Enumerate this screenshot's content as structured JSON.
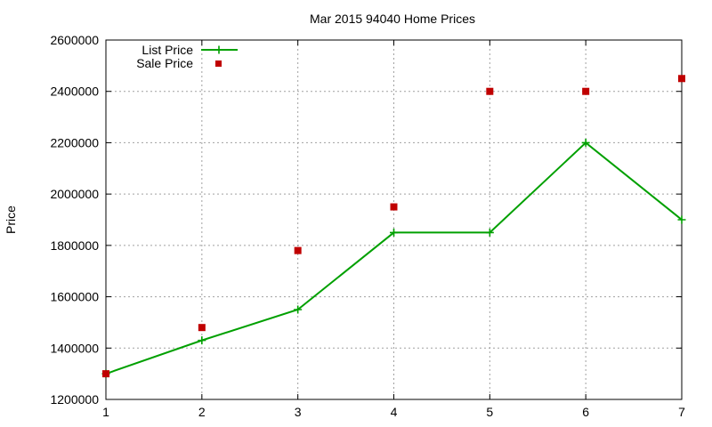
{
  "colors": {
    "list_price": "#00a000",
    "sale_price": "#c00000",
    "grid": "#a0a0a0",
    "axis": "#000000"
  },
  "chart_data": {
    "type": "line",
    "title": "Mar 2015 94040 Home Prices",
    "xlabel": "",
    "ylabel": "Price",
    "xlim": [
      1,
      7
    ],
    "ylim": [
      1200000,
      2600000
    ],
    "x_ticks": [
      "1",
      "2",
      "3",
      "4",
      "5",
      "6",
      "7"
    ],
    "y_ticks": [
      "1200000",
      "1400000",
      "1600000",
      "1800000",
      "2000000",
      "2200000",
      "2400000",
      "2600000"
    ],
    "grid": true,
    "legend_position": "top-left",
    "series": [
      {
        "name": "List Price",
        "type": "line",
        "marker": "plus",
        "color": "#00a000",
        "x": [
          1,
          2,
          3,
          4,
          5,
          6,
          7
        ],
        "values": [
          1300000,
          1430000,
          1550000,
          1850000,
          1850000,
          2200000,
          1900000
        ]
      },
      {
        "name": "Sale Price",
        "type": "scatter",
        "marker": "square",
        "color": "#c00000",
        "x": [
          1,
          2,
          3,
          4,
          5,
          6,
          7
        ],
        "values": [
          1300000,
          1480000,
          1780000,
          1950000,
          2400000,
          2400000,
          2450000
        ]
      }
    ]
  }
}
